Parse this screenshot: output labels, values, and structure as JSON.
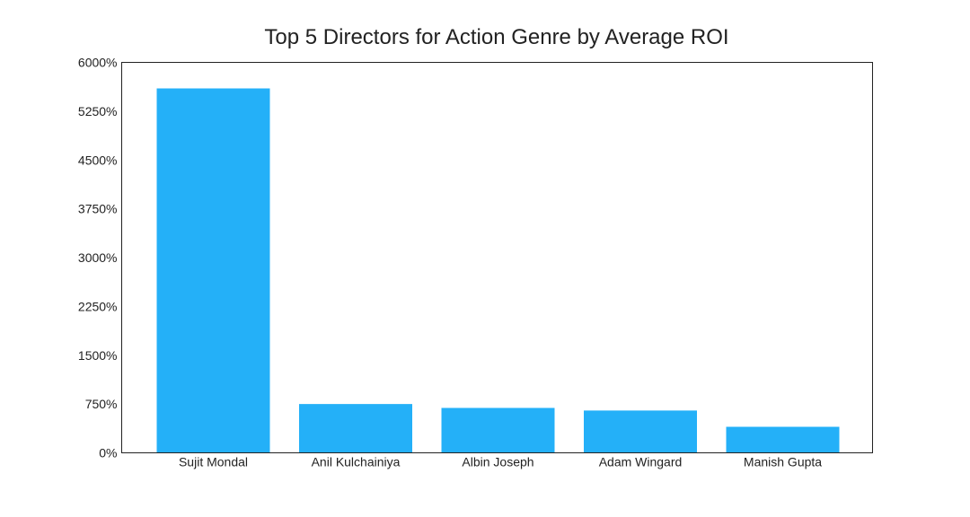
{
  "chart_data": {
    "type": "bar",
    "title": "Top 5 Directors for Action Genre by Average ROI",
    "xlabel": "",
    "ylabel": "",
    "categories": [
      "Sujit Mondal",
      "Anil Kulchainiya",
      "Albin Joseph",
      "Adam Wingard",
      "Manish Gupta"
    ],
    "values": [
      5600,
      750,
      690,
      650,
      400
    ],
    "ylim": [
      0,
      6000
    ],
    "yticks": [
      0,
      750,
      1500,
      2250,
      3000,
      3750,
      4500,
      5250,
      6000
    ],
    "ytick_labels": [
      "0%",
      "750%",
      "1500%",
      "2250%",
      "3000%",
      "3750%",
      "4500%",
      "5250%",
      "6000%"
    ],
    "bar_color": "#24b0f8",
    "grid": false,
    "legend": "none"
  }
}
